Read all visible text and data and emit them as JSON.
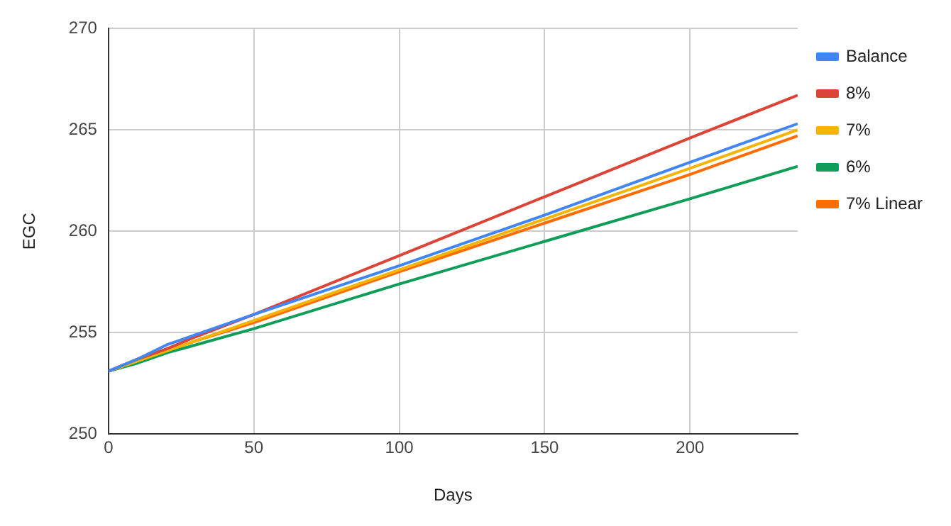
{
  "chart_data": {
    "type": "line",
    "xlabel": "Days",
    "ylabel": "EGC",
    "x": [
      0,
      10,
      20,
      30,
      50,
      100,
      150,
      200,
      237
    ],
    "series": [
      {
        "name": "Balance",
        "color": "#4285f4",
        "values": [
          253.1,
          253.7,
          254.4,
          254.9,
          255.9,
          258.3,
          260.8,
          263.4,
          265.3
        ]
      },
      {
        "name": "8%",
        "color": "#db4437",
        "values": [
          253.1,
          253.7,
          254.2,
          254.8,
          255.9,
          258.8,
          261.7,
          264.6,
          266.7
        ]
      },
      {
        "name": "7%",
        "color": "#f4b400",
        "values": [
          253.1,
          253.6,
          254.1,
          254.6,
          255.6,
          258.1,
          260.6,
          263.1,
          265.0
        ]
      },
      {
        "name": "6%",
        "color": "#0f9d58",
        "values": [
          253.1,
          253.5,
          254.0,
          254.4,
          255.2,
          257.4,
          259.5,
          261.6,
          263.2
        ]
      },
      {
        "name": "7% Linear",
        "color": "#ff6d00",
        "values": [
          253.1,
          253.6,
          254.1,
          254.6,
          255.5,
          258.0,
          260.4,
          262.8,
          264.7
        ]
      }
    ],
    "xlim": [
      0,
      237
    ],
    "xticks": [
      0,
      50,
      100,
      150,
      200
    ],
    "ylim": [
      250,
      270
    ],
    "yticks": [
      250,
      255,
      260,
      265,
      270
    ],
    "grid": true,
    "legend": "right",
    "marker": "none",
    "line_style": "solid"
  }
}
